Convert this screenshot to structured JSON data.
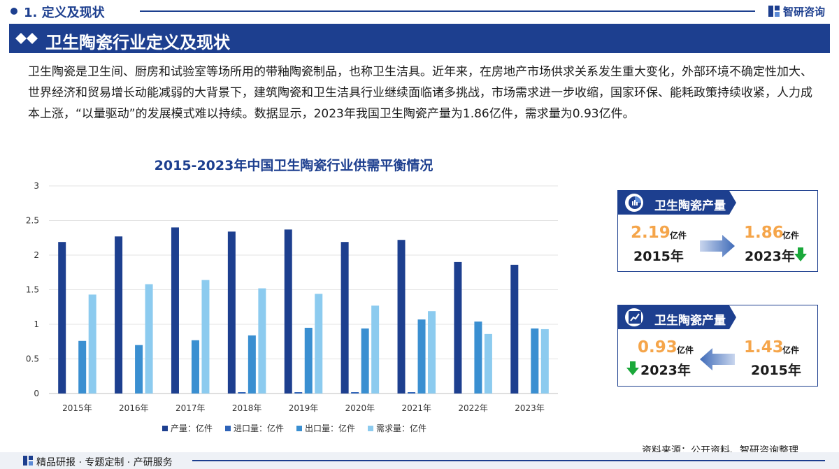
{
  "header": {
    "section_label": "1. 定义及现状",
    "brand_name": "智研咨询",
    "title": "卫生陶瓷行业定义及现状"
  },
  "paragraph": "卫生陶瓷是卫生间、厨房和试验室等场所用的带釉陶瓷制品，也称卫生洁具。近年来，在房地产市场供求关系发生重大变化，外部环境不确定性加大、世界经济和贸易增长动能减弱的大背景下，建筑陶瓷和卫生洁具行业继续面临诸多挑战，市场需求进一步收缩，国家环保、能耗政策持续收紧，人力成本上涨，“以量驱动”的发展模式难以持续。数据显示，2023年我国卫生陶瓷产量为1.86亿件，需求量为0.93亿件。",
  "chart_data": {
    "type": "bar",
    "title": "2015-2023年中国卫生陶瓷行业供需平衡情况",
    "categories": [
      "2015年",
      "2016年",
      "2017年",
      "2018年",
      "2019年",
      "2020年",
      "2021年",
      "2022年",
      "2023年"
    ],
    "series": [
      {
        "name": "产量：亿件",
        "color": "#1d3f8f",
        "values": [
          2.19,
          2.27,
          2.4,
          2.34,
          2.37,
          2.19,
          2.22,
          1.9,
          1.86
        ]
      },
      {
        "name": "进口量：亿件",
        "color": "#2e63b8",
        "values": [
          0,
          0,
          0,
          0.02,
          0.02,
          0.02,
          0.02,
          0,
          0
        ]
      },
      {
        "name": "出口量：亿件",
        "color": "#3a8fd1",
        "values": [
          0.76,
          0.7,
          0.77,
          0.84,
          0.95,
          0.94,
          1.07,
          1.04,
          0.94
        ]
      },
      {
        "name": "需求量：亿件",
        "color": "#8ccbef",
        "values": [
          1.43,
          1.58,
          1.64,
          1.52,
          1.44,
          1.27,
          1.19,
          0.86,
          0.93
        ]
      }
    ],
    "y_ticks": [
      "0",
      "0.5",
      "1",
      "1.5",
      "2",
      "2.5",
      "3"
    ],
    "ylim": [
      0,
      3
    ],
    "grid": true,
    "legend_position": "bottom"
  },
  "card_production": {
    "title": "卫生陶瓷产量",
    "from_value": "2.19",
    "from_unit": "亿件",
    "from_year": "2015年",
    "to_value": "1.86",
    "to_unit": "亿件",
    "to_year": "2023年"
  },
  "card_demand": {
    "title": "卫生陶瓷产量",
    "left_value": "0.93",
    "left_unit": "亿件",
    "left_year": "2023年",
    "right_value": "1.43",
    "right_unit": "亿件",
    "right_year": "2015年"
  },
  "source": "资料来源：公开资料、智研咨询整理",
  "footer": "精品研报 · 专题定制 · 产研服务",
  "colors": {
    "brand_blue": "#1d3f8f",
    "accent_orange": "#f5a54a",
    "down_green": "#1aa83a"
  }
}
